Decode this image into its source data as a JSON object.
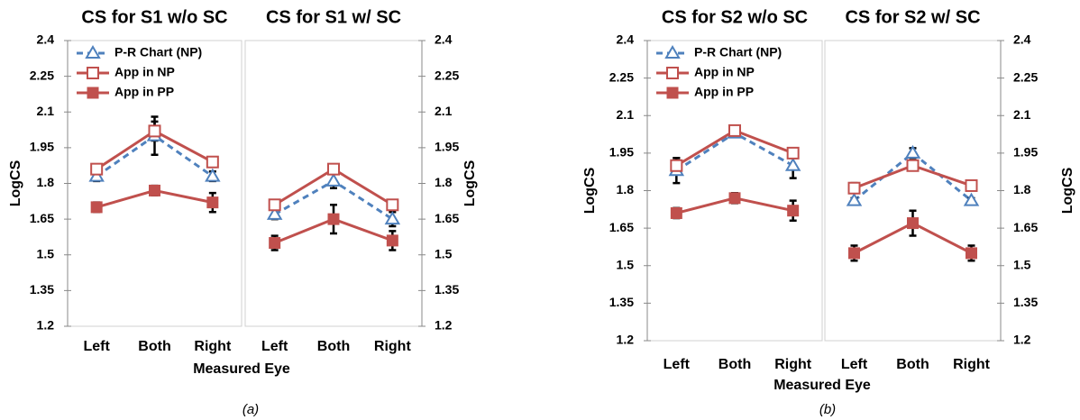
{
  "chart_data": [
    {
      "type": "line",
      "title": "CS for S1 w/o SC",
      "ylabel": "LogCS",
      "categories": [
        "Left",
        "Both",
        "Right"
      ],
      "ylim": [
        1.2,
        2.4
      ],
      "yticks": [
        1.2,
        1.35,
        1.5,
        1.65,
        1.8,
        1.95,
        2.1,
        2.25,
        2.4
      ],
      "series": [
        {
          "name": "P-R Chart  (NP)",
          "color": "#4f81bd",
          "marker": "triangle",
          "dashed": true,
          "values": [
            1.83,
            2.0,
            1.83
          ],
          "errors": [
            0.02,
            0.08,
            0.02
          ]
        },
        {
          "name": "App in NP",
          "color": "#c0504d",
          "marker": "open-square",
          "values": [
            1.86,
            2.02,
            1.89
          ],
          "errors": [
            0.02,
            0.04,
            0.02
          ]
        },
        {
          "name": "App in PP",
          "color": "#c0504d",
          "marker": "square",
          "values": [
            1.7,
            1.77,
            1.72
          ],
          "errors": [
            0.02,
            0.02,
            0.04
          ]
        }
      ]
    },
    {
      "type": "line",
      "title": "CS for S1 w/ SC",
      "ylabel": "LogCS",
      "categories": [
        "Left",
        "Both",
        "Right"
      ],
      "ylim": [
        1.2,
        2.4
      ],
      "yticks": [
        1.2,
        1.35,
        1.5,
        1.65,
        1.8,
        1.95,
        2.1,
        2.25,
        2.4
      ],
      "series": [
        {
          "color": "#4f81bd",
          "marker": "triangle",
          "dashed": true,
          "values": [
            1.67,
            1.81,
            1.65
          ],
          "errors": [
            0.02,
            0.03,
            0.03
          ]
        },
        {
          "color": "#c0504d",
          "marker": "open-square",
          "values": [
            1.71,
            1.86,
            1.71
          ],
          "errors": [
            0.01,
            0.01,
            0.01
          ]
        },
        {
          "color": "#c0504d",
          "marker": "square",
          "values": [
            1.55,
            1.65,
            1.56
          ],
          "errors": [
            0.03,
            0.06,
            0.04
          ]
        }
      ]
    },
    {
      "type": "line",
      "title": "CS for S2 w/o SC",
      "ylabel": "LogCS",
      "categories": [
        "Left",
        "Both",
        "Right"
      ],
      "ylim": [
        1.2,
        2.4
      ],
      "yticks": [
        1.2,
        1.35,
        1.5,
        1.65,
        1.8,
        1.95,
        2.1,
        2.25,
        2.4
      ],
      "series": [
        {
          "name": "P-R Chart  (NP)",
          "color": "#4f81bd",
          "marker": "triangle",
          "dashed": true,
          "values": [
            1.88,
            2.03,
            1.9
          ],
          "errors": [
            0.05,
            0.01,
            0.05
          ]
        },
        {
          "name": "App in NP",
          "color": "#c0504d",
          "marker": "open-square",
          "values": [
            1.9,
            2.04,
            1.95
          ],
          "errors": [
            0.03,
            0.01,
            0.02
          ]
        },
        {
          "name": "App in PP",
          "color": "#c0504d",
          "marker": "square",
          "values": [
            1.71,
            1.77,
            1.72
          ],
          "errors": [
            0.02,
            0.02,
            0.04
          ]
        }
      ]
    },
    {
      "type": "line",
      "title": "CS for S2 w/ SC",
      "ylabel": "LogCS",
      "categories": [
        "Left",
        "Both",
        "Right"
      ],
      "ylim": [
        1.2,
        2.4
      ],
      "yticks": [
        1.2,
        1.35,
        1.5,
        1.65,
        1.8,
        1.95,
        2.1,
        2.25,
        2.4
      ],
      "series": [
        {
          "color": "#4f81bd",
          "marker": "triangle",
          "dashed": true,
          "values": [
            1.76,
            1.95,
            1.76
          ],
          "errors": [
            0.01,
            0.02,
            0.01
          ]
        },
        {
          "color": "#c0504d",
          "marker": "open-square",
          "values": [
            1.81,
            1.9,
            1.82
          ],
          "errors": [
            0.02,
            0.02,
            0.01
          ]
        },
        {
          "color": "#c0504d",
          "marker": "square",
          "values": [
            1.55,
            1.67,
            1.55
          ],
          "errors": [
            0.03,
            0.05,
            0.03
          ]
        }
      ]
    }
  ],
  "groups": [
    {
      "xlabel": "Measured Eye",
      "caption": "(a)"
    },
    {
      "xlabel": "Measured Eye",
      "caption": "(b)"
    }
  ]
}
